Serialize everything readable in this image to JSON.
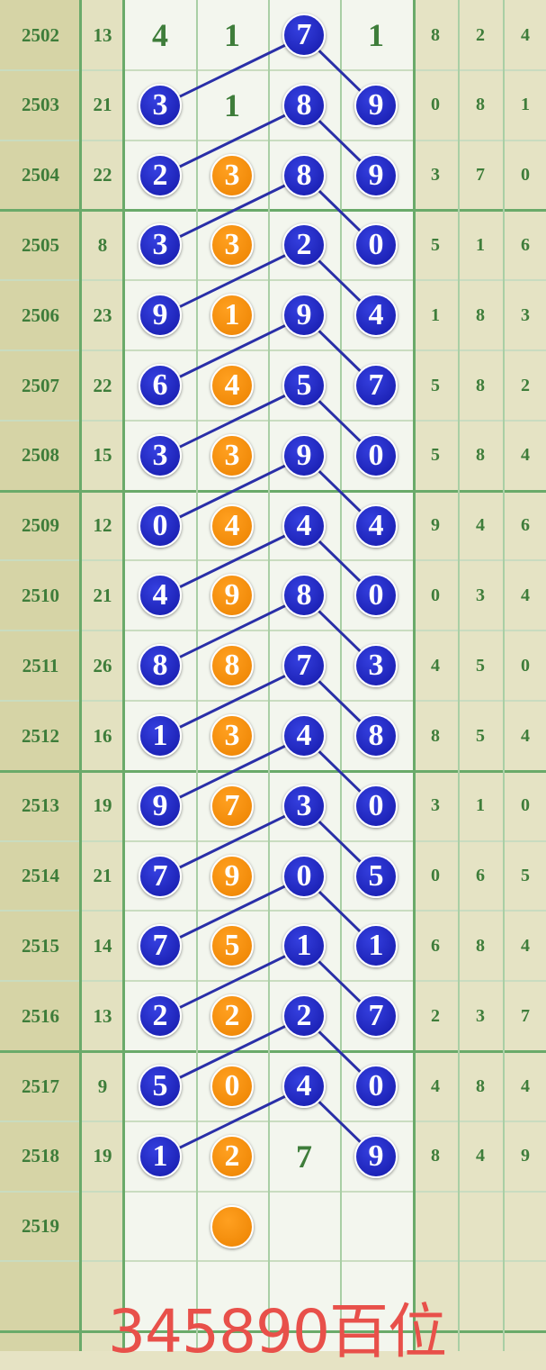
{
  "colors": {
    "blue_ball": "#1a1fb8",
    "orange_ball": "#f08a00",
    "text": "#3e7d3a",
    "caption": "#e8504a"
  },
  "rows": [
    {
      "period": "2502",
      "sum": "13",
      "cells": [
        {
          "v": "4",
          "t": "plain"
        },
        {
          "v": "1",
          "t": "plain"
        },
        {
          "v": "7",
          "t": "blue"
        },
        {
          "v": "1",
          "t": "plain"
        }
      ],
      "side": [
        "8",
        "2",
        "4"
      ]
    },
    {
      "period": "2503",
      "sum": "21",
      "cells": [
        {
          "v": "3",
          "t": "blue"
        },
        {
          "v": "1",
          "t": "plain"
        },
        {
          "v": "8",
          "t": "blue"
        },
        {
          "v": "9",
          "t": "blue"
        }
      ],
      "side": [
        "0",
        "8",
        "1"
      ]
    },
    {
      "period": "2504",
      "sum": "22",
      "cells": [
        {
          "v": "2",
          "t": "blue"
        },
        {
          "v": "3",
          "t": "orange"
        },
        {
          "v": "8",
          "t": "blue"
        },
        {
          "v": "9",
          "t": "blue"
        }
      ],
      "side": [
        "3",
        "7",
        "0"
      ]
    },
    {
      "period": "2505",
      "sum": "8",
      "cells": [
        {
          "v": "3",
          "t": "blue"
        },
        {
          "v": "3",
          "t": "orange"
        },
        {
          "v": "2",
          "t": "blue"
        },
        {
          "v": "0",
          "t": "blue"
        }
      ],
      "side": [
        "5",
        "1",
        "6"
      ]
    },
    {
      "period": "2506",
      "sum": "23",
      "cells": [
        {
          "v": "9",
          "t": "blue"
        },
        {
          "v": "1",
          "t": "orange"
        },
        {
          "v": "9",
          "t": "blue"
        },
        {
          "v": "4",
          "t": "blue"
        }
      ],
      "side": [
        "1",
        "8",
        "3"
      ]
    },
    {
      "period": "2507",
      "sum": "22",
      "cells": [
        {
          "v": "6",
          "t": "blue"
        },
        {
          "v": "4",
          "t": "orange"
        },
        {
          "v": "5",
          "t": "blue"
        },
        {
          "v": "7",
          "t": "blue"
        }
      ],
      "side": [
        "5",
        "8",
        "2"
      ]
    },
    {
      "period": "2508",
      "sum": "15",
      "cells": [
        {
          "v": "3",
          "t": "blue"
        },
        {
          "v": "3",
          "t": "orange"
        },
        {
          "v": "9",
          "t": "blue"
        },
        {
          "v": "0",
          "t": "blue"
        }
      ],
      "side": [
        "5",
        "8",
        "4"
      ]
    },
    {
      "period": "2509",
      "sum": "12",
      "cells": [
        {
          "v": "0",
          "t": "blue"
        },
        {
          "v": "4",
          "t": "orange"
        },
        {
          "v": "4",
          "t": "blue"
        },
        {
          "v": "4",
          "t": "blue"
        }
      ],
      "side": [
        "9",
        "4",
        "6"
      ]
    },
    {
      "period": "2510",
      "sum": "21",
      "cells": [
        {
          "v": "4",
          "t": "blue"
        },
        {
          "v": "9",
          "t": "orange"
        },
        {
          "v": "8",
          "t": "blue"
        },
        {
          "v": "0",
          "t": "blue"
        }
      ],
      "side": [
        "0",
        "3",
        "4"
      ]
    },
    {
      "period": "2511",
      "sum": "26",
      "cells": [
        {
          "v": "8",
          "t": "blue"
        },
        {
          "v": "8",
          "t": "orange"
        },
        {
          "v": "7",
          "t": "blue"
        },
        {
          "v": "3",
          "t": "blue"
        }
      ],
      "side": [
        "4",
        "5",
        "0"
      ]
    },
    {
      "period": "2512",
      "sum": "16",
      "cells": [
        {
          "v": "1",
          "t": "blue"
        },
        {
          "v": "3",
          "t": "orange"
        },
        {
          "v": "4",
          "t": "blue"
        },
        {
          "v": "8",
          "t": "blue"
        }
      ],
      "side": [
        "8",
        "5",
        "4"
      ]
    },
    {
      "period": "2513",
      "sum": "19",
      "cells": [
        {
          "v": "9",
          "t": "blue"
        },
        {
          "v": "7",
          "t": "orange"
        },
        {
          "v": "3",
          "t": "blue"
        },
        {
          "v": "0",
          "t": "blue"
        }
      ],
      "side": [
        "3",
        "1",
        "0"
      ]
    },
    {
      "period": "2514",
      "sum": "21",
      "cells": [
        {
          "v": "7",
          "t": "blue"
        },
        {
          "v": "9",
          "t": "orange"
        },
        {
          "v": "0",
          "t": "blue"
        },
        {
          "v": "5",
          "t": "blue"
        }
      ],
      "side": [
        "0",
        "6",
        "5"
      ]
    },
    {
      "period": "2515",
      "sum": "14",
      "cells": [
        {
          "v": "7",
          "t": "blue"
        },
        {
          "v": "5",
          "t": "orange"
        },
        {
          "v": "1",
          "t": "blue"
        },
        {
          "v": "1",
          "t": "blue"
        }
      ],
      "side": [
        "6",
        "8",
        "4"
      ]
    },
    {
      "period": "2516",
      "sum": "13",
      "cells": [
        {
          "v": "2",
          "t": "blue"
        },
        {
          "v": "2",
          "t": "orange"
        },
        {
          "v": "2",
          "t": "blue"
        },
        {
          "v": "7",
          "t": "blue"
        }
      ],
      "side": [
        "2",
        "3",
        "7"
      ]
    },
    {
      "period": "2517",
      "sum": "9",
      "cells": [
        {
          "v": "5",
          "t": "blue"
        },
        {
          "v": "0",
          "t": "orange"
        },
        {
          "v": "4",
          "t": "blue"
        },
        {
          "v": "0",
          "t": "blue"
        }
      ],
      "side": [
        "4",
        "8",
        "4"
      ]
    },
    {
      "period": "2518",
      "sum": "19",
      "cells": [
        {
          "v": "1",
          "t": "blue"
        },
        {
          "v": "2",
          "t": "orange"
        },
        {
          "v": "7",
          "t": "plain"
        },
        {
          "v": "9",
          "t": "blue"
        }
      ],
      "side": [
        "8",
        "4",
        "9"
      ]
    },
    {
      "period": "2519",
      "sum": "",
      "cells": [
        {
          "v": "",
          "t": "empty"
        },
        {
          "v": "",
          "t": "orange"
        },
        {
          "v": "",
          "t": "empty"
        },
        {
          "v": "",
          "t": "empty"
        }
      ],
      "side": [
        "",
        "",
        ""
      ]
    }
  ],
  "caption": "345890百位"
}
